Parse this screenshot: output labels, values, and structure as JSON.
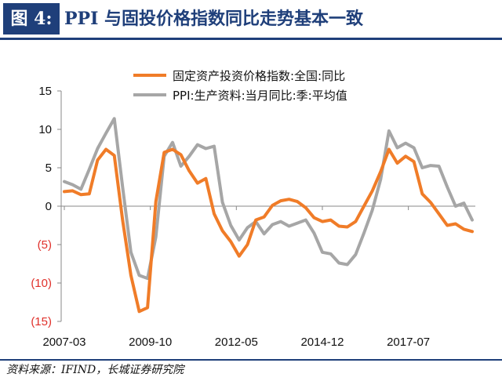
{
  "title": {
    "tag": "图 4:",
    "text": "PPI 与固投价格指数同比走势基本一致"
  },
  "source": "资料来源：IFIND，长城证券研究院",
  "colors": {
    "title": "#1f3f7a",
    "series_fixed_asset": "#f07c28",
    "series_ppi": "#a6a6a6",
    "negative_tick": "#e0302a",
    "tick": "#111111"
  },
  "chart_data": {
    "type": "line",
    "x_type": "quarterly-date",
    "x_range": [
      "2007-03",
      "2019-06"
    ],
    "x_ticks": [
      "2007-03",
      "2009-10",
      "2012-05",
      "2014-12",
      "2017-07"
    ],
    "y_ticks": [
      15,
      10,
      5,
      0,
      -5,
      -10,
      -15
    ],
    "y_tick_labels": [
      "15",
      "10",
      "5",
      "0",
      "(5)",
      "(10)",
      "(15)"
    ],
    "ylim": [
      -15,
      15
    ],
    "grid": false,
    "legend_position": "top-right",
    "series": [
      {
        "name": "固定资产投资价格指数:全国:同比",
        "x": [
          "2007-03",
          "2007-06",
          "2007-09",
          "2007-12",
          "2008-03",
          "2008-06",
          "2008-09",
          "2008-12",
          "2009-03",
          "2009-06",
          "2009-09",
          "2009-12",
          "2010-03",
          "2010-06",
          "2010-09",
          "2010-12",
          "2011-03",
          "2011-06",
          "2011-09",
          "2011-12",
          "2012-03",
          "2012-06",
          "2012-09",
          "2012-12",
          "2013-03",
          "2013-06",
          "2013-09",
          "2013-12",
          "2014-03",
          "2014-06",
          "2014-09",
          "2014-12",
          "2015-03",
          "2015-06",
          "2015-09",
          "2015-12",
          "2016-03",
          "2016-06",
          "2016-09",
          "2016-12",
          "2017-03",
          "2017-06",
          "2017-09",
          "2017-12",
          "2018-03",
          "2018-06",
          "2018-09",
          "2018-12",
          "2019-03",
          "2019-06"
        ],
        "values": [
          1.9,
          2.0,
          1.5,
          1.6,
          6.0,
          7.4,
          6.6,
          -1.8,
          -9.0,
          -13.7,
          -13.2,
          0.6,
          7.0,
          7.4,
          6.7,
          4.6,
          3.0,
          3.6,
          -1.0,
          -3.2,
          -4.6,
          -6.5,
          -5.0,
          -1.8,
          -1.4,
          0.1,
          0.7,
          0.9,
          0.6,
          -0.2,
          -1.5,
          -2.0,
          -1.8,
          -2.6,
          -2.7,
          -2.0,
          0.0,
          2.0,
          4.5,
          7.4,
          5.6,
          6.5,
          5.8,
          1.6,
          0.5,
          -1.0,
          -2.5,
          -2.3,
          -3.0,
          -3.3
        ]
      },
      {
        "name": "PPI:生产资料:当月同比:季:平均值",
        "x": [
          "2007-03",
          "2007-06",
          "2007-09",
          "2007-12",
          "2008-03",
          "2008-06",
          "2008-09",
          "2008-12",
          "2009-03",
          "2009-06",
          "2009-09",
          "2009-12",
          "2010-03",
          "2010-06",
          "2010-09",
          "2010-12",
          "2011-03",
          "2011-06",
          "2011-09",
          "2011-12",
          "2012-03",
          "2012-06",
          "2012-09",
          "2012-12",
          "2013-03",
          "2013-06",
          "2013-09",
          "2013-12",
          "2014-03",
          "2014-06",
          "2014-09",
          "2014-12",
          "2015-03",
          "2015-06",
          "2015-09",
          "2015-12",
          "2016-03",
          "2016-06",
          "2016-09",
          "2016-12",
          "2017-03",
          "2017-06",
          "2017-09",
          "2017-12",
          "2018-03",
          "2018-06",
          "2018-09",
          "2018-12",
          "2019-03",
          "2019-06"
        ],
        "values": [
          3.2,
          2.8,
          2.2,
          4.8,
          7.5,
          9.5,
          11.4,
          2.5,
          -6.0,
          -9.0,
          -9.4,
          -4.0,
          6.5,
          8.3,
          5.2,
          6.5,
          8.0,
          7.5,
          7.8,
          0.5,
          -2.5,
          -4.4,
          -2.8,
          -2.0,
          -3.6,
          -2.4,
          -2.0,
          -2.6,
          -2.2,
          -1.8,
          -3.5,
          -6.0,
          -6.2,
          -7.4,
          -7.6,
          -6.3,
          -3.5,
          -0.5,
          3.5,
          9.8,
          7.6,
          8.2,
          7.6,
          5.0,
          5.3,
          5.2,
          2.5,
          0.0,
          0.4,
          -1.8
        ]
      }
    ]
  }
}
